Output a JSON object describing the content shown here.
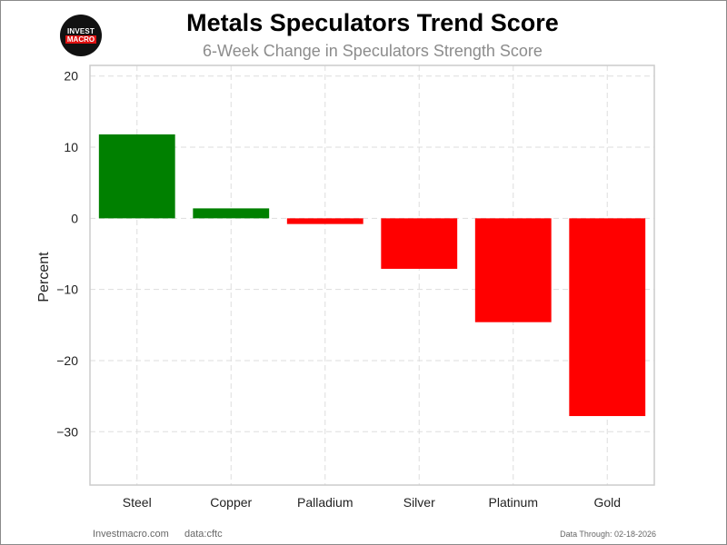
{
  "logo": {
    "line1": "INVEST",
    "line2": "MACRO"
  },
  "footer": {
    "site": "Investmacro.com",
    "source": "data:cftc",
    "data_through": "Data Through: 02-18-2026"
  },
  "colors": {
    "positive": "#008000",
    "negative": "#ff0000",
    "grid": "#dddddd",
    "axis_frame": "#cccccc"
  },
  "chart_data": {
    "type": "bar",
    "title": "Metals Speculators Trend Score",
    "subtitle": "6-Week Change in Speculators Strength Score",
    "xlabel": "",
    "ylabel": "Percent",
    "categories": [
      "Steel",
      "Copper",
      "Palladium",
      "Silver",
      "Platinum",
      "Gold"
    ],
    "values": [
      11.8,
      1.4,
      -0.8,
      -7.1,
      -14.6,
      -27.8
    ],
    "ylim": [
      -37.5,
      21.5
    ],
    "yticks": [
      20,
      10,
      0,
      -10,
      -20,
      -30
    ],
    "ytick_labels": [
      "20",
      "10",
      "0",
      "−10",
      "−20",
      "−30"
    ],
    "grid": true,
    "legend": "none"
  }
}
